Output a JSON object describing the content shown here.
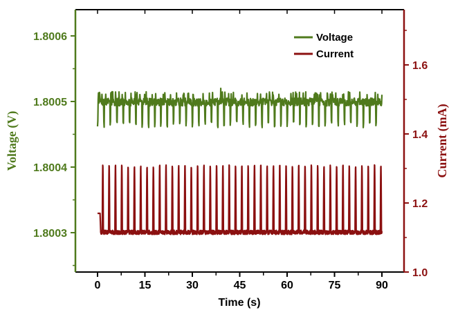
{
  "chart_data": {
    "type": "line",
    "xlabel": "Time (s)",
    "ylabel_left": "Voltage (V)",
    "ylabel_right": "Current (mA)",
    "xlim": [
      -7,
      97
    ],
    "ylim_left": [
      1.80024,
      1.80064
    ],
    "ylim_right": [
      1.0,
      1.76
    ],
    "x_ticks": [
      0,
      15,
      30,
      45,
      60,
      75,
      90
    ],
    "y_left_ticks": [
      1.8003,
      1.8004,
      1.8005,
      1.8006
    ],
    "y_right_ticks": [
      1.0,
      1.2,
      1.4,
      1.6
    ],
    "legend_position": "top-right",
    "colors": {
      "voltage": "#4f7a1c",
      "current": "#8b1010",
      "axis": "#000000"
    },
    "series": [
      {
        "name": "Voltage",
        "axis": "left",
        "baseline": 1.8005,
        "spike_period_s": 2.0,
        "spike_min": 1.80046,
        "spike_max": 1.80051,
        "peak_value": 1.80052,
        "x_range": [
          0,
          90
        ]
      },
      {
        "name": "Current",
        "axis": "right",
        "initial_value": 1.17,
        "baseline": 1.115,
        "peak_value": 1.315,
        "pulse_period_s": 2.0,
        "pulse_start_s": 1.5,
        "x_range": [
          0,
          90
        ]
      }
    ]
  }
}
